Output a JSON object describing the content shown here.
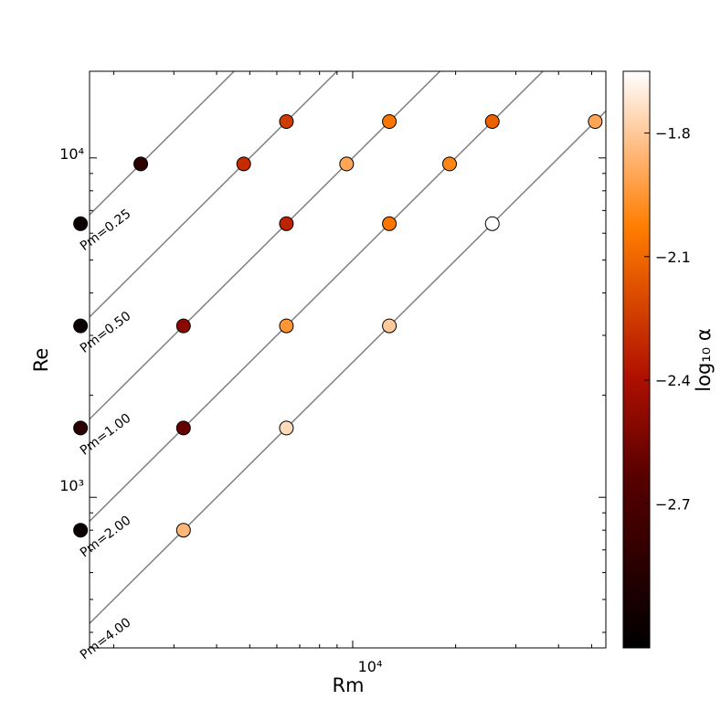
{
  "chart_data": {
    "type": "scatter",
    "xlabel": "Rm",
    "ylabel": "Re",
    "xscale": "log",
    "yscale": "log",
    "xlim": [
      1700,
      55000
    ],
    "ylim": [
      360,
      18000
    ],
    "x_ticks": [
      {
        "value": 10000,
        "label": "10⁴"
      }
    ],
    "y_ticks": [
      {
        "value": 1000,
        "label": "10³"
      },
      {
        "value": 10000,
        "label": "10⁴"
      }
    ],
    "colorbar": {
      "label": "log₁₀ α",
      "cmap": "gist_heat",
      "range": [
        -3.05,
        -1.65
      ],
      "ticks": [
        {
          "value": -1.8,
          "label": "−1.8"
        },
        {
          "value": -2.1,
          "label": "−2.1"
        },
        {
          "value": -2.4,
          "label": "−2.4"
        },
        {
          "value": -2.7,
          "label": "−2.7"
        }
      ]
    },
    "pm_lines": [
      {
        "pm": 0.25,
        "label": "Pm=0.25"
      },
      {
        "pm": 0.5,
        "label": "Pm=0.50"
      },
      {
        "pm": 1.0,
        "label": "Pm=1.00"
      },
      {
        "pm": 2.0,
        "label": "Pm=2.00"
      },
      {
        "pm": 4.0,
        "label": "Pm=4.00"
      }
    ],
    "points": [
      {
        "rm": 1600,
        "re": 6400,
        "log_alpha": -3.0
      },
      {
        "rm": 2400,
        "re": 9600,
        "log_alpha": -2.85
      },
      {
        "rm": 4800,
        "re": 9600,
        "log_alpha": -2.3
      },
      {
        "rm": 6400,
        "re": 12800,
        "log_alpha": -2.25
      },
      {
        "rm": 1600,
        "re": 3200,
        "log_alpha": -3.0
      },
      {
        "rm": 3200,
        "re": 3200,
        "log_alpha": -2.5
      },
      {
        "rm": 6400,
        "re": 6400,
        "log_alpha": -2.33
      },
      {
        "rm": 9600,
        "re": 9600,
        "log_alpha": -1.9
      },
      {
        "rm": 12800,
        "re": 12800,
        "log_alpha": -2.05
      },
      {
        "rm": 1600,
        "re": 1600,
        "log_alpha": -2.85
      },
      {
        "rm": 3200,
        "re": 1600,
        "log_alpha": -2.6
      },
      {
        "rm": 6400,
        "re": 3200,
        "log_alpha": -1.95
      },
      {
        "rm": 12800,
        "re": 6400,
        "log_alpha": -2.05
      },
      {
        "rm": 19200,
        "re": 9600,
        "log_alpha": -2.0
      },
      {
        "rm": 25600,
        "re": 12800,
        "log_alpha": -2.12
      },
      {
        "rm": 1600,
        "re": 800,
        "log_alpha": -3.0
      },
      {
        "rm": 3200,
        "re": 800,
        "log_alpha": -1.85
      },
      {
        "rm": 6400,
        "re": 1600,
        "log_alpha": -1.75
      },
      {
        "rm": 12800,
        "re": 3200,
        "log_alpha": -1.8
      },
      {
        "rm": 25600,
        "re": 6400,
        "log_alpha": -1.65
      },
      {
        "rm": 51200,
        "re": 12800,
        "log_alpha": -1.9
      }
    ]
  }
}
